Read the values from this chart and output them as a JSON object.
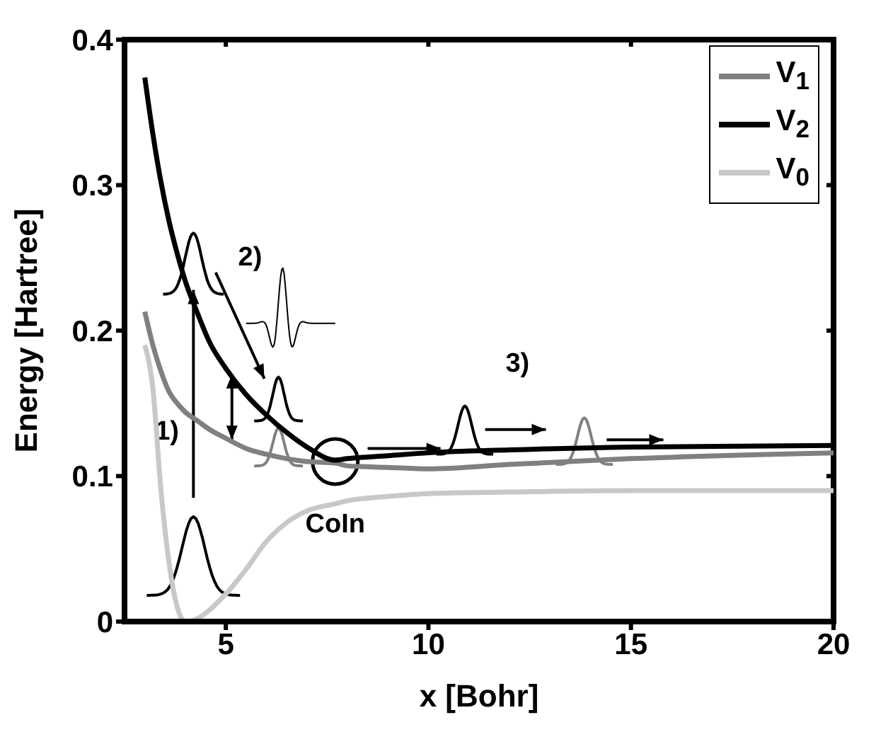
{
  "chart_data": {
    "type": "line",
    "xlabel": "x [Bohr]",
    "ylabel": "Energy [Hartree]",
    "xlim": [
      2.5,
      20
    ],
    "xticks": [
      5,
      10,
      15,
      20
    ],
    "ylim": [
      0,
      0.4
    ],
    "yticks": [
      0,
      0.1,
      0.2,
      0.3,
      0.4
    ],
    "legend": "top right",
    "marker": "none",
    "line_style": "solid",
    "x": [
      3,
      3.2,
      3.4,
      3.6,
      3.8,
      4,
      4.3,
      4.6,
      5,
      5.5,
      6,
      6.5,
      7,
      7.7,
      8,
      9,
      10,
      12,
      15,
      20
    ],
    "series": [
      {
        "name": "V$_{1}$",
        "color": "#808080",
        "values": [
          0.213,
          0.19,
          0.172,
          0.158,
          0.15,
          0.144,
          0.138,
          0.132,
          0.126,
          0.119,
          0.115,
          0.112,
          0.11,
          0.109,
          0.107,
          0.106,
          0.105,
          0.108,
          0.112,
          0.116
        ]
      },
      {
        "name": "V$_{2}$",
        "color": "#000000",
        "values": [
          0.374,
          0.335,
          0.302,
          0.275,
          0.253,
          0.234,
          0.212,
          0.192,
          0.174,
          0.156,
          0.142,
          0.13,
          0.12,
          0.111,
          0.112,
          0.114,
          0.116,
          0.118,
          0.12,
          0.121
        ]
      },
      {
        "name": "V$_{0}$",
        "color": "#c8c8c8",
        "values": [
          0.19,
          0.16,
          0.09,
          0.04,
          0.01,
          0,
          0.002,
          0.008,
          0.019,
          0.036,
          0.055,
          0.068,
          0.076,
          0.081,
          0.083,
          0.086,
          0.088,
          0.089,
          0.09,
          0.09
        ]
      }
    ],
    "annotations": [
      "1)",
      "2)",
      "3)",
      {
        "text": "CoIn",
        "x": 7.7,
        "y": 0.11
      }
    ]
  }
}
